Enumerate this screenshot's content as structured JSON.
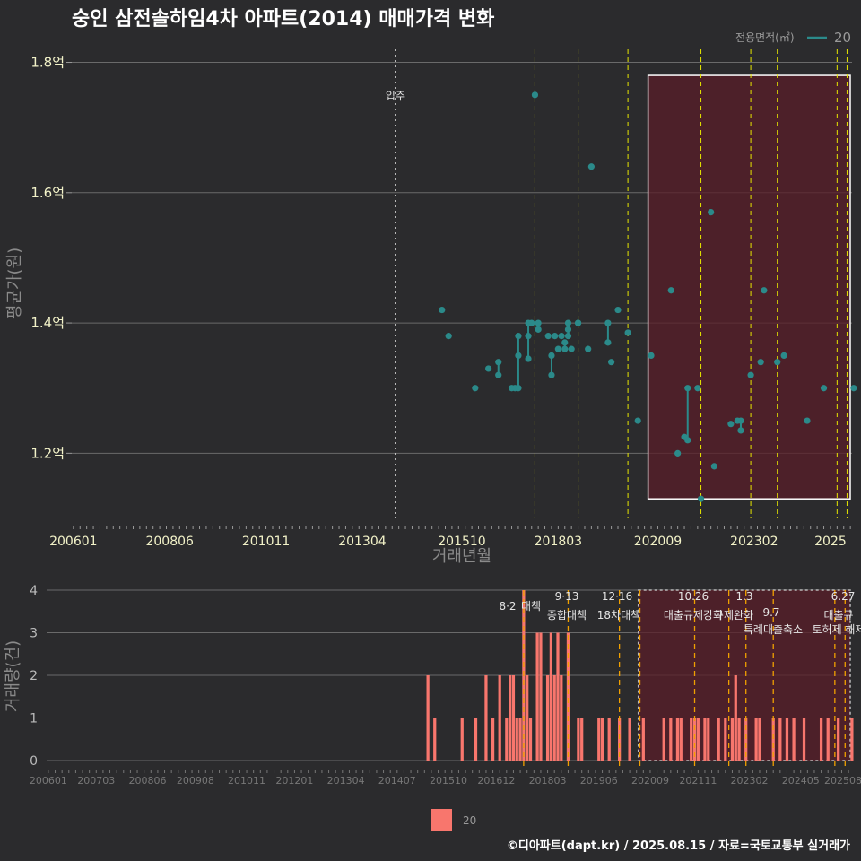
{
  "title": "숭인 삼전솔하임4차 아파트(2014) 매매가격 변화",
  "footer": "©디아파트(dapt.kr) / 2025.08.15 / 자료=국토교통부 실거래가",
  "legend": {
    "title": "전용면적(㎡)",
    "item": "20"
  },
  "bottom_legend": {
    "item": "20"
  },
  "colors": {
    "background": "#2b2b2d",
    "line": "#2b8a8a",
    "bar": "#f8766d",
    "vline_yellow": "#e6e600",
    "vline_orange": "#f0a000",
    "region_fill": "#5a1e28"
  },
  "chart_data": [
    {
      "type": "line",
      "title": "숭인 삼전솔하임4차 아파트(2014) 매매가격 변화",
      "xlabel": "거래년월",
      "ylabel": "평균가(원)",
      "x_ticks": [
        "200601",
        "200806",
        "201011",
        "201304",
        "201510",
        "201803",
        "202009",
        "202302",
        "2025"
      ],
      "y_ticks": [
        "1.2억",
        "1.4억",
        "1.6억",
        "1.8억"
      ],
      "ylim": [
        1.1,
        1.82
      ],
      "xlim": [
        "2006-01",
        "2025-08"
      ],
      "annotations": [
        {
          "label": "입주",
          "x": "2014-02",
          "style": "dotted-white"
        }
      ],
      "policy_lines": [
        "2017-08",
        "2018-09",
        "2019-12",
        "2021-10",
        "2023-01",
        "2023-09",
        "2025-03",
        "2025-06"
      ],
      "highlight_range": [
        "2020-05",
        "2025-08"
      ],
      "highlight_yrange": [
        1.13,
        1.78
      ],
      "series": [
        {
          "name": "20",
          "points": [
            [
              "2015-04",
              1.42
            ],
            [
              "2015-06",
              1.38
            ],
            [
              "2016-02",
              1.3
            ],
            [
              "2016-06",
              1.33
            ],
            [
              "2016-09",
              1.34
            ],
            [
              "2016-09",
              1.32
            ],
            [
              "2017-01",
              1.3
            ],
            [
              "2017-02",
              1.3
            ],
            [
              "2017-03",
              1.3
            ],
            [
              "2017-03",
              1.35
            ],
            [
              "2017-03",
              1.38
            ],
            [
              "2017-06",
              1.38
            ],
            [
              "2017-06",
              1.4
            ],
            [
              "2017-06",
              1.345
            ],
            [
              "2017-07",
              1.4
            ],
            [
              "2017-08",
              1.75
            ],
            [
              "2017-09",
              1.4
            ],
            [
              "2017-09",
              1.39
            ],
            [
              "2017-12",
              1.38
            ],
            [
              "2018-01",
              1.32
            ],
            [
              "2018-01",
              1.35
            ],
            [
              "2018-02",
              1.38
            ],
            [
              "2018-03",
              1.36
            ],
            [
              "2018-04",
              1.38
            ],
            [
              "2018-05",
              1.36
            ],
            [
              "2018-05",
              1.37
            ],
            [
              "2018-06",
              1.4
            ],
            [
              "2018-06",
              1.39
            ],
            [
              "2018-06",
              1.38
            ],
            [
              "2018-07",
              1.36
            ],
            [
              "2018-09",
              1.4
            ],
            [
              "2018-09",
              1.4
            ],
            [
              "2018-12",
              1.36
            ],
            [
              "2019-01",
              1.64
            ],
            [
              "2019-06",
              1.4
            ],
            [
              "2019-06",
              1.37
            ],
            [
              "2019-07",
              1.34
            ],
            [
              "2019-09",
              1.42
            ],
            [
              "2019-12",
              1.385
            ],
            [
              "2020-03",
              1.25
            ],
            [
              "2020-07",
              1.35
            ],
            [
              "2021-01",
              1.45
            ],
            [
              "2021-03",
              1.2
            ],
            [
              "2021-05",
              1.225
            ],
            [
              "2021-06",
              1.22
            ],
            [
              "2021-06",
              1.3
            ],
            [
              "2021-09",
              1.3
            ],
            [
              "2021-10",
              1.13
            ],
            [
              "2022-01",
              1.57
            ],
            [
              "2022-02",
              1.18
            ],
            [
              "2022-07",
              1.245
            ],
            [
              "2022-09",
              1.25
            ],
            [
              "2022-10",
              1.25
            ],
            [
              "2022-10",
              1.235
            ],
            [
              "2023-01",
              1.32
            ],
            [
              "2023-04",
              1.34
            ],
            [
              "2023-05",
              1.45
            ],
            [
              "2023-09",
              1.34
            ],
            [
              "2023-11",
              1.35
            ],
            [
              "2024-06",
              1.25
            ],
            [
              "2024-11",
              1.3
            ],
            [
              "2025-08",
              1.3
            ]
          ]
        }
      ]
    },
    {
      "type": "bar",
      "xlabel": "",
      "ylabel": "거래량(건)",
      "x_ticks": [
        "200601",
        "200703",
        "200806",
        "200908",
        "201011",
        "201201",
        "201304",
        "201407",
        "201510",
        "201612",
        "201803",
        "201906",
        "202009",
        "202111",
        "202302",
        "202405",
        "202508"
      ],
      "y_ticks": [
        "0",
        "1",
        "2",
        "3",
        "4"
      ],
      "ylim": [
        0,
        4
      ],
      "policy_lines": [
        {
          "date": "2017-08",
          "label_date": "8·2",
          "label": "대책"
        },
        {
          "date": "2018-09",
          "label_date": "9·13",
          "label": "종합대책"
        },
        {
          "date": "2019-12",
          "label_date": "12·16",
          "label": "18차대책"
        },
        {
          "date": "2020-06",
          "label_date": "",
          "label": ""
        },
        {
          "date": "2021-10",
          "label_date": "10.26",
          "label": "대출규제강화"
        },
        {
          "date": "2022-08",
          "label_date": "",
          "label": ""
        },
        {
          "date": "2023-01",
          "label_date": "1.3",
          "label": "규제완화"
        },
        {
          "date": "2023-09",
          "label_date": "9.7",
          "label": "특례대출축소"
        },
        {
          "date": "2025-03",
          "label_date": "",
          "label": "토허제 해제"
        },
        {
          "date": "2025-06",
          "label_date": "6.27",
          "label": "대출규"
        }
      ],
      "highlight_range": [
        "2020-05",
        "2025-08"
      ],
      "series": [
        {
          "name": "20",
          "values": [
            [
              "2015-04",
              2
            ],
            [
              "2015-06",
              1
            ],
            [
              "2016-02",
              1
            ],
            [
              "2016-06",
              1
            ],
            [
              "2016-09",
              2
            ],
            [
              "2016-11",
              1
            ],
            [
              "2017-01",
              2
            ],
            [
              "2017-03",
              1
            ],
            [
              "2017-04",
              2
            ],
            [
              "2017-05",
              2
            ],
            [
              "2017-06",
              1
            ],
            [
              "2017-07",
              1
            ],
            [
              "2017-08",
              4
            ],
            [
              "2017-09",
              2
            ],
            [
              "2017-10",
              1
            ],
            [
              "2017-12",
              3
            ],
            [
              "2018-01",
              3
            ],
            [
              "2018-03",
              2
            ],
            [
              "2018-04",
              3
            ],
            [
              "2018-05",
              2
            ],
            [
              "2018-06",
              3
            ],
            [
              "2018-07",
              2
            ],
            [
              "2018-09",
              3
            ],
            [
              "2018-12",
              1
            ],
            [
              "2019-01",
              1
            ],
            [
              "2019-06",
              1
            ],
            [
              "2019-07",
              1
            ],
            [
              "2019-09",
              1
            ],
            [
              "2019-12",
              1
            ],
            [
              "2020-03",
              1
            ],
            [
              "2020-07",
              1
            ],
            [
              "2021-01",
              1
            ],
            [
              "2021-03",
              1
            ],
            [
              "2021-05",
              1
            ],
            [
              "2021-06",
              1
            ],
            [
              "2021-09",
              1
            ],
            [
              "2021-10",
              1
            ],
            [
              "2021-11",
              1
            ],
            [
              "2022-01",
              1
            ],
            [
              "2022-02",
              1
            ],
            [
              "2022-05",
              1
            ],
            [
              "2022-07",
              1
            ],
            [
              "2022-09",
              1
            ],
            [
              "2022-10",
              2
            ],
            [
              "2022-11",
              1
            ],
            [
              "2023-01",
              1
            ],
            [
              "2023-04",
              1
            ],
            [
              "2023-05",
              1
            ],
            [
              "2023-09",
              1
            ],
            [
              "2023-11",
              1
            ],
            [
              "2024-01",
              1
            ],
            [
              "2024-03",
              1
            ],
            [
              "2024-06",
              1
            ],
            [
              "2024-11",
              1
            ],
            [
              "2025-01",
              1
            ],
            [
              "2025-04",
              1
            ],
            [
              "2025-08",
              1
            ]
          ]
        }
      ]
    }
  ]
}
